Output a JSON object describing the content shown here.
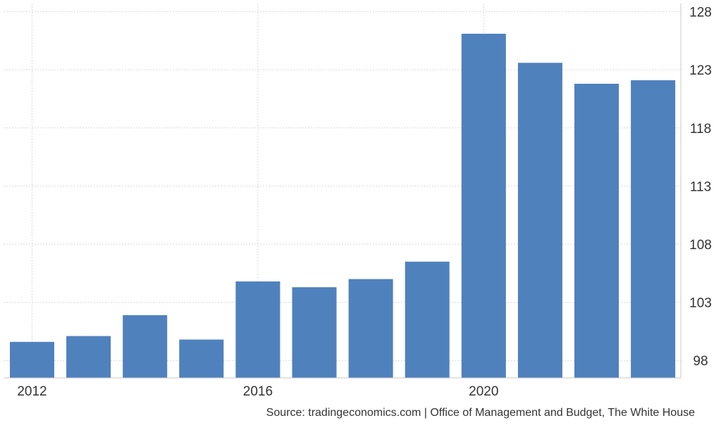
{
  "chart_data": {
    "type": "bar",
    "title": "",
    "xlabel": "",
    "ylabel": "",
    "categories": [
      "2012",
      "2013",
      "2014",
      "2015",
      "2016",
      "2017",
      "2018",
      "2019",
      "2020",
      "2021",
      "2022",
      "2023"
    ],
    "values": [
      99.6,
      100.1,
      101.9,
      99.8,
      104.8,
      104.3,
      105.0,
      106.5,
      126.1,
      123.6,
      121.8,
      122.1
    ],
    "ylim": [
      96.5,
      128.7
    ],
    "y_ticks": [
      "98",
      "103",
      "108",
      "113",
      "118",
      "123",
      "128"
    ],
    "x_tick_labels": [
      "2012",
      "2016",
      "2020"
    ],
    "y_axis_side": "right",
    "grid": true,
    "legend": "none",
    "bar_color": "#4f81bd"
  },
  "source": "Source: tradingeconomics.com | Office of Management and Budget, The White House"
}
